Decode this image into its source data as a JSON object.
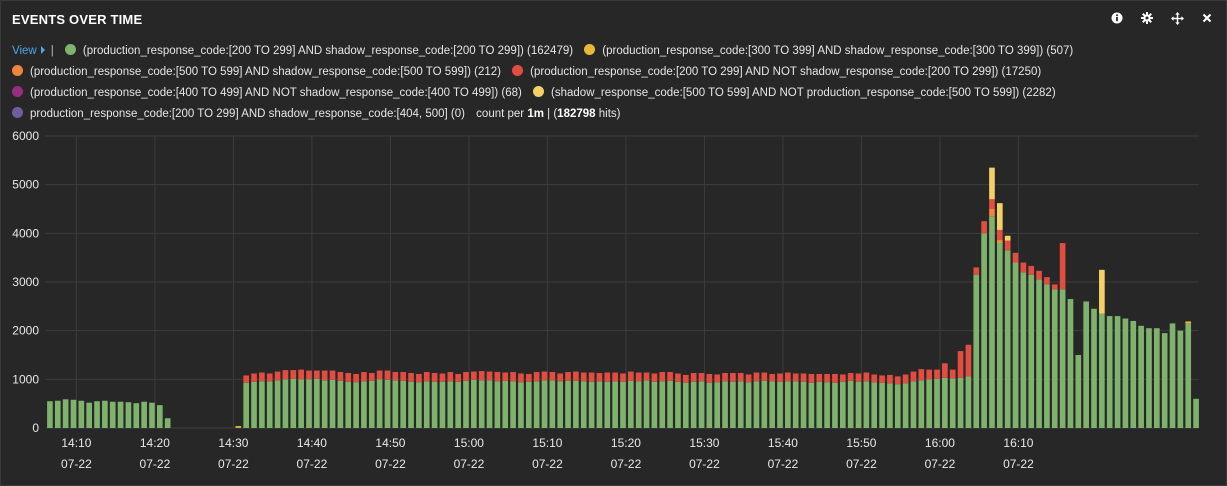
{
  "panel": {
    "title": "EVENTS OVER TIME",
    "icons": [
      "info-icon",
      "gear-icon",
      "move-icon",
      "close-icon"
    ]
  },
  "legend": {
    "view_label": "View",
    "separator": "|",
    "items": [
      {
        "label": "(production_response_code:[200 TO 299] AND shadow_response_code:[200 TO 299]) (162479)",
        "color": "#7eb26d"
      },
      {
        "label": "(production_response_code:[300 TO 399] AND shadow_response_code:[300 TO 399]) (507)",
        "color": "#eab839"
      },
      {
        "label": "(production_response_code:[500 TO 599] AND shadow_response_code:[500 TO 599]) (212)",
        "color": "#ef843c"
      },
      {
        "label": "(production_response_code:[200 TO 299] AND NOT shadow_response_code:[200 TO 299]) (17250)",
        "color": "#e24d42"
      },
      {
        "label": "(production_response_code:[400 TO 499] AND NOT shadow_response_code:[400 TO 499]) (68)",
        "color": "#962d82"
      },
      {
        "label": "(shadow_response_code:[500 TO 599] AND NOT production_response_code:[500 TO 599]) (2282)",
        "color": "#f4d168"
      },
      {
        "label": "production_response_code:[200 TO 299] AND shadow_response_code:[404, 500] (0)",
        "color": "#705da0"
      }
    ],
    "count_per_prefix": "count per",
    "interval": "1m",
    "total_prefix": "| (",
    "total_hits": "182798",
    "total_suffix": "hits)"
  },
  "chart_data": {
    "type": "bar",
    "stacked": true,
    "ylim": [
      0,
      6000
    ],
    "yticks": [
      "0",
      "1000",
      "2000",
      "3000",
      "4000",
      "5000",
      "6000"
    ],
    "xticks": [
      {
        "time": "14:10",
        "date": "07-22"
      },
      {
        "time": "14:20",
        "date": "07-22"
      },
      {
        "time": "14:30",
        "date": "07-22"
      },
      {
        "time": "14:40",
        "date": "07-22"
      },
      {
        "time": "14:50",
        "date": "07-22"
      },
      {
        "time": "15:00",
        "date": "07-22"
      },
      {
        "time": "15:10",
        "date": "07-22"
      },
      {
        "time": "15:20",
        "date": "07-22"
      },
      {
        "time": "15:30",
        "date": "07-22"
      },
      {
        "time": "15:40",
        "date": "07-22"
      },
      {
        "time": "15:50",
        "date": "07-22"
      },
      {
        "time": "16:00",
        "date": "07-22"
      },
      {
        "time": "16:10",
        "date": "07-22"
      }
    ],
    "grid": true,
    "x_start": "14:06",
    "interval_minutes": 1,
    "series": [
      {
        "color": "#7eb26d",
        "values": [
          550,
          560,
          590,
          580,
          560,
          520,
          550,
          560,
          540,
          540,
          530,
          510,
          540,
          520,
          470,
          200,
          0,
          0,
          0,
          0,
          0,
          0,
          0,
          0,
          10,
          930,
          950,
          960,
          960,
          980,
          1000,
          1010,
          1000,
          1000,
          1010,
          980,
          990,
          970,
          950,
          940,
          960,
          970,
          1000,
          990,
          980,
          970,
          950,
          940,
          960,
          950,
          950,
          960,
          950,
          970,
          990,
          980,
          980,
          960,
          970,
          960,
          940,
          950,
          960,
          980,
          980,
          960,
          970,
          970,
          960,
          950,
          960,
          950,
          960,
          950,
          970,
          960,
          980,
          950,
          960,
          970,
          950,
          930,
          950,
          960,
          930,
          940,
          960,
          950,
          960,
          940,
          960,
          970,
          960,
          950,
          960,
          960,
          950,
          930,
          950,
          940,
          930,
          950,
          970,
          950,
          960,
          940,
          930,
          920,
          900,
          920,
          960,
          980,
          1000,
          1010,
          1030,
          1020,
          1030,
          1060,
          3150,
          4000,
          4350,
          3800,
          3650,
          3400,
          3200,
          3150,
          3050,
          2950,
          2850,
          2850,
          2650,
          1500,
          2600,
          2450,
          2350,
          2300,
          2300,
          2250,
          2200,
          2100,
          2050,
          2050,
          1950,
          2150,
          2000,
          2150,
          600
        ]
      },
      {
        "color": "#eab839",
        "values": [
          0,
          0,
          0,
          0,
          0,
          0,
          0,
          0,
          0,
          0,
          0,
          0,
          0,
          0,
          0,
          0,
          0,
          0,
          0,
          0,
          0,
          0,
          0,
          0,
          30,
          0,
          0,
          0,
          0,
          0,
          0,
          0,
          0,
          0,
          0,
          0,
          0,
          0,
          0,
          0,
          0,
          0,
          0,
          0,
          0,
          0,
          0,
          0,
          0,
          0,
          0,
          0,
          0,
          0,
          0,
          0,
          0,
          0,
          0,
          0,
          0,
          0,
          0,
          0,
          0,
          0,
          0,
          0,
          0,
          0,
          0,
          0,
          0,
          0,
          0,
          0,
          0,
          0,
          0,
          0,
          0,
          0,
          0,
          0,
          0,
          0,
          0,
          0,
          0,
          0,
          0,
          0,
          0,
          0,
          0,
          0,
          0,
          0,
          0,
          0,
          0,
          0,
          0,
          0,
          0,
          0,
          0,
          0,
          0,
          0,
          0,
          0,
          0,
          0,
          0,
          0,
          0,
          0,
          0,
          0,
          0,
          20,
          0,
          0,
          0,
          0,
          0,
          0,
          0,
          0,
          0,
          0,
          0,
          0,
          0,
          0,
          0,
          0,
          0,
          0,
          0,
          0,
          0,
          0,
          0,
          40,
          0,
          0,
          0,
          0
        ]
      },
      {
        "color": "#ef843c",
        "values": [
          0,
          0,
          0,
          0,
          0,
          0,
          0,
          0,
          0,
          0,
          0,
          0,
          0,
          0,
          0,
          0,
          0,
          0,
          0,
          0,
          0,
          0,
          0,
          0,
          0,
          0,
          0,
          0,
          0,
          0,
          0,
          0,
          0,
          0,
          0,
          0,
          0,
          0,
          0,
          0,
          0,
          0,
          0,
          0,
          0,
          0,
          0,
          0,
          0,
          0,
          0,
          0,
          0,
          0,
          0,
          0,
          0,
          0,
          0,
          0,
          0,
          0,
          0,
          0,
          0,
          0,
          0,
          0,
          0,
          0,
          0,
          0,
          0,
          0,
          0,
          0,
          0,
          0,
          0,
          0,
          0,
          0,
          0,
          0,
          0,
          0,
          0,
          0,
          0,
          0,
          0,
          0,
          0,
          0,
          0,
          0,
          0,
          0,
          0,
          0,
          0,
          0,
          0,
          0,
          0,
          0,
          0,
          0,
          0,
          0,
          0,
          0,
          0,
          0,
          0,
          0,
          0,
          0,
          0,
          0,
          150,
          50,
          0,
          0,
          0,
          0,
          0,
          0,
          0,
          0,
          0,
          0,
          0,
          0,
          0,
          0,
          0,
          0,
          0,
          0,
          0,
          0,
          0,
          0,
          0,
          0,
          0,
          0,
          0,
          0
        ]
      },
      {
        "color": "#e24d42",
        "values": [
          0,
          0,
          0,
          0,
          0,
          0,
          0,
          0,
          0,
          0,
          0,
          0,
          0,
          0,
          0,
          0,
          0,
          0,
          0,
          0,
          0,
          0,
          0,
          0,
          0,
          150,
          170,
          180,
          160,
          180,
          190,
          180,
          200,
          180,
          170,
          200,
          190,
          180,
          180,
          170,
          190,
          160,
          180,
          190,
          170,
          180,
          180,
          170,
          190,
          180,
          170,
          190,
          160,
          180,
          170,
          190,
          180,
          190,
          170,
          190,
          180,
          160,
          190,
          180,
          170,
          160,
          180,
          190,
          180,
          190,
          170,
          190,
          180,
          170,
          190,
          180,
          160,
          170,
          190,
          180,
          170,
          160,
          180,
          170,
          180,
          160,
          170,
          180,
          170,
          160,
          180,
          170,
          150,
          170,
          180,
          160,
          170,
          180,
          160,
          170,
          180,
          150,
          160,
          170,
          180,
          160,
          150,
          170,
          160,
          180,
          200,
          230,
          200,
          190,
          300,
          180,
          550,
          650,
          150,
          250,
          200,
          200,
          200,
          200,
          200,
          180,
          180,
          150,
          100,
          950,
          0,
          0,
          0,
          0,
          0,
          0,
          0,
          0,
          0,
          0,
          0,
          0,
          0,
          0,
          0
        ]
      },
      {
        "color": "#962d82",
        "values": [
          0,
          0,
          0,
          0,
          0,
          0,
          0,
          0,
          0,
          0,
          0,
          0,
          0,
          0,
          0,
          0,
          0,
          0,
          0,
          0,
          0,
          0,
          0,
          0,
          0,
          0,
          0,
          0,
          0,
          0,
          0,
          0,
          0,
          0,
          0,
          0,
          0,
          0,
          0,
          0,
          0,
          0,
          0,
          0,
          0,
          0,
          0,
          0,
          0,
          0,
          0,
          0,
          0,
          0,
          0,
          0,
          0,
          0,
          0,
          0,
          0,
          0,
          0,
          0,
          0,
          0,
          0,
          0,
          0,
          0,
          0,
          0,
          0,
          0,
          0,
          0,
          0,
          0,
          0,
          0,
          0,
          0,
          0,
          0,
          0,
          0,
          0,
          0,
          0,
          0,
          0,
          0,
          0,
          0,
          0,
          0,
          0,
          0,
          0,
          0,
          0,
          0,
          0,
          0,
          0,
          0,
          0,
          0,
          0,
          0,
          0,
          0,
          0,
          0,
          0,
          0,
          0,
          0,
          0,
          0,
          0,
          0,
          0,
          0,
          0,
          0,
          0,
          0,
          0,
          0,
          0,
          0,
          0,
          0,
          0,
          0,
          0,
          0,
          0,
          0,
          0,
          0,
          0,
          0,
          0,
          0,
          0,
          0,
          0,
          0
        ]
      },
      {
        "color": "#f4d168",
        "values": [
          0,
          0,
          0,
          0,
          0,
          0,
          0,
          0,
          0,
          0,
          0,
          0,
          0,
          0,
          0,
          0,
          0,
          0,
          0,
          0,
          0,
          0,
          0,
          0,
          0,
          0,
          0,
          0,
          0,
          0,
          0,
          0,
          0,
          0,
          0,
          0,
          0,
          0,
          0,
          0,
          0,
          0,
          0,
          0,
          0,
          0,
          0,
          0,
          0,
          0,
          0,
          0,
          0,
          0,
          0,
          0,
          0,
          0,
          0,
          0,
          0,
          0,
          0,
          0,
          0,
          0,
          0,
          0,
          0,
          0,
          0,
          0,
          0,
          0,
          0,
          0,
          0,
          0,
          0,
          0,
          0,
          0,
          0,
          0,
          0,
          0,
          0,
          0,
          0,
          0,
          0,
          0,
          0,
          0,
          0,
          0,
          0,
          0,
          0,
          0,
          0,
          0,
          0,
          0,
          0,
          0,
          0,
          0,
          0,
          0,
          0,
          0,
          0,
          0,
          0,
          0,
          0,
          0,
          0,
          0,
          650,
          550,
          100,
          0,
          0,
          0,
          0,
          0,
          0,
          0,
          0,
          0,
          0,
          0,
          900,
          0,
          0,
          0,
          0,
          0,
          0,
          0,
          0,
          0,
          0,
          0,
          0,
          0,
          0,
          0
        ]
      },
      {
        "color": "#705da0",
        "values": [
          0,
          0,
          0,
          0,
          0,
          0,
          0,
          0,
          0,
          0,
          0,
          0,
          0,
          0,
          0,
          0,
          0,
          0,
          0,
          0,
          0,
          0,
          0,
          0,
          0,
          0,
          0,
          0,
          0,
          0,
          0,
          0,
          0,
          0,
          0,
          0,
          0,
          0,
          0,
          0,
          0,
          0,
          0,
          0,
          0,
          0,
          0,
          0,
          0,
          0,
          0,
          0,
          0,
          0,
          0,
          0,
          0,
          0,
          0,
          0,
          0,
          0,
          0,
          0,
          0,
          0,
          0,
          0,
          0,
          0,
          0,
          0,
          0,
          0,
          0,
          0,
          0,
          0,
          0,
          0,
          0,
          0,
          0,
          0,
          0,
          0,
          0,
          0,
          0,
          0,
          0,
          0,
          0,
          0,
          0,
          0,
          0,
          0,
          0,
          0,
          0,
          0,
          0,
          0,
          0,
          0,
          0,
          0,
          0,
          0,
          0,
          0,
          0,
          0,
          0,
          0,
          0,
          0,
          0,
          0,
          0,
          0,
          0,
          0,
          0,
          0,
          0,
          0,
          0,
          0,
          0,
          0,
          0,
          0,
          0,
          0,
          0,
          0,
          0,
          0,
          0,
          0,
          0,
          0,
          0,
          0,
          0,
          0,
          0,
          0
        ]
      }
    ]
  }
}
